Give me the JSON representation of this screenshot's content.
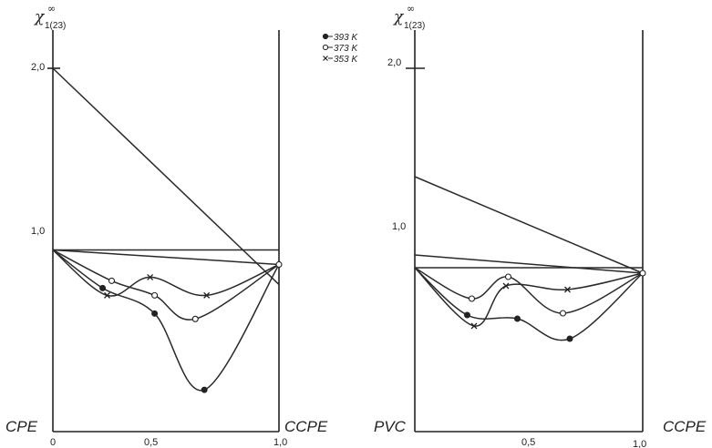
{
  "legend": [
    {
      "label": "393 K",
      "marker": "filled-circle"
    },
    {
      "label": "373 K",
      "marker": "open-circle"
    },
    {
      "label": "353 K",
      "marker": "cross"
    }
  ],
  "colors": {
    "ink": "#222222"
  },
  "chart_data": [
    {
      "type": "line",
      "ylabel": "χ∞1(23)",
      "y_tick_labels": [
        "1,0",
        "2,0"
      ],
      "x_tick_labels": [
        "0",
        "0,5",
        "1,0"
      ],
      "left_label": "CPE",
      "right_label": "CCPE",
      "xlim": [
        0,
        1
      ],
      "ylim": [
        0,
        2.25
      ],
      "series": [
        {
          "marker": "filled-circle",
          "points": [
            [
              0.0,
              1.0
            ],
            [
              0.22,
              0.79
            ],
            [
              0.45,
              0.65
            ],
            [
              0.67,
              0.23
            ],
            [
              1.0,
              0.92
            ]
          ]
        },
        {
          "marker": "open-circle",
          "points": [
            [
              0.0,
              1.0
            ],
            [
              0.26,
              0.83
            ],
            [
              0.45,
              0.75
            ],
            [
              0.63,
              0.62
            ],
            [
              1.0,
              0.92
            ]
          ]
        },
        {
          "marker": "cross",
          "points": [
            [
              0.0,
              1.0
            ],
            [
              0.24,
              0.75
            ],
            [
              0.43,
              0.85
            ],
            [
              0.68,
              0.75
            ],
            [
              1.0,
              0.92
            ]
          ]
        }
      ],
      "straight_lines": [
        [
          [
            0.0,
            2.0
          ],
          [
            1.0,
            0.81
          ]
        ],
        [
          [
            0.0,
            1.0
          ],
          [
            1.0,
            1.0
          ]
        ],
        [
          [
            0.0,
            1.0
          ],
          [
            1.0,
            0.92
          ]
        ]
      ]
    },
    {
      "type": "line",
      "ylabel": "χ∞1(23)",
      "y_tick_labels": [
        "1,0",
        "2,0"
      ],
      "x_tick_labels": [
        "0,5",
        "1,0"
      ],
      "left_label": "PVC",
      "right_label": "CCPE",
      "xlim": [
        0,
        1
      ],
      "ylim": [
        0,
        2.25
      ],
      "series": [
        {
          "marker": "filled-circle",
          "points": [
            [
              0.0,
              0.9
            ],
            [
              0.23,
              0.64
            ],
            [
              0.45,
              0.62
            ],
            [
              0.68,
              0.51
            ],
            [
              1.0,
              0.87
            ]
          ]
        },
        {
          "marker": "open-circle",
          "points": [
            [
              0.0,
              0.9
            ],
            [
              0.25,
              0.73
            ],
            [
              0.41,
              0.85
            ],
            [
              0.65,
              0.65
            ],
            [
              1.0,
              0.87
            ]
          ]
        },
        {
          "marker": "cross",
          "points": [
            [
              0.0,
              0.9
            ],
            [
              0.26,
              0.58
            ],
            [
              0.4,
              0.8
            ],
            [
              0.67,
              0.78
            ],
            [
              1.0,
              0.87
            ]
          ]
        }
      ],
      "straight_lines": [
        [
          [
            0.0,
            1.4
          ],
          [
            1.0,
            0.87
          ]
        ],
        [
          [
            0.0,
            0.97
          ],
          [
            1.0,
            0.87
          ]
        ],
        [
          [
            0.0,
            0.9
          ],
          [
            1.0,
            0.9
          ]
        ]
      ]
    }
  ]
}
